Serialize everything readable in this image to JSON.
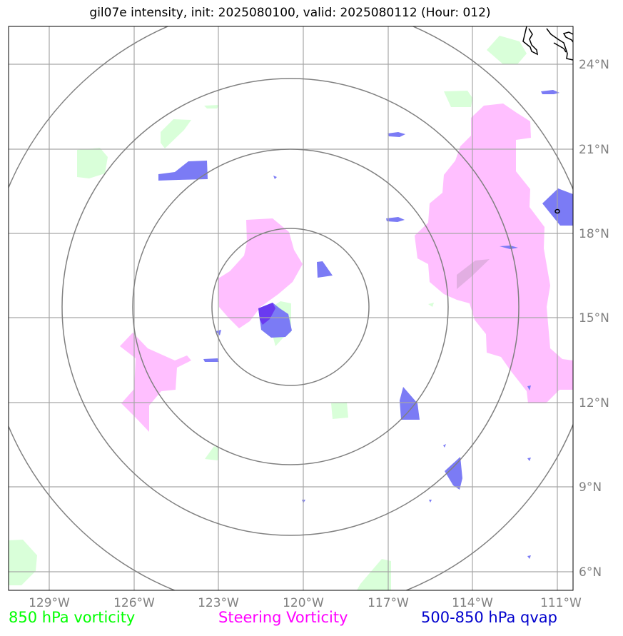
{
  "title": "gil07e intensity, init: 2025080100, valid: 2025080112 (Hour: 012)",
  "lon_ticks": [
    "129°W",
    "126°W",
    "123°W",
    "120°W",
    "117°W",
    "114°W",
    "111°W"
  ],
  "lat_ticks": [
    "24°N",
    "21°N",
    "18°N",
    "15°N",
    "12°N",
    "9°N",
    "6°N"
  ],
  "legend": {
    "vort850": "850 hPa vorticity",
    "steering": "Steering Vorticity",
    "qvap": "500-850 hPa qvap"
  },
  "colors": {
    "vort850": "#00ff00",
    "steering": "#ff00ff",
    "qvap": "#0000cd",
    "vort850_fill": "#d9ffd9",
    "steering_fill": "#ffbfff",
    "qvap_fill": "#7b7bf5",
    "grid": "#a6a6a6",
    "rings": "#808080"
  },
  "extent": {
    "lon_min": -130.5,
    "lon_max": -110.5,
    "lat_min": 5.3,
    "lat_max": 25.3
  },
  "storm_center": {
    "lon": -120.45,
    "lat": 15.4
  }
}
